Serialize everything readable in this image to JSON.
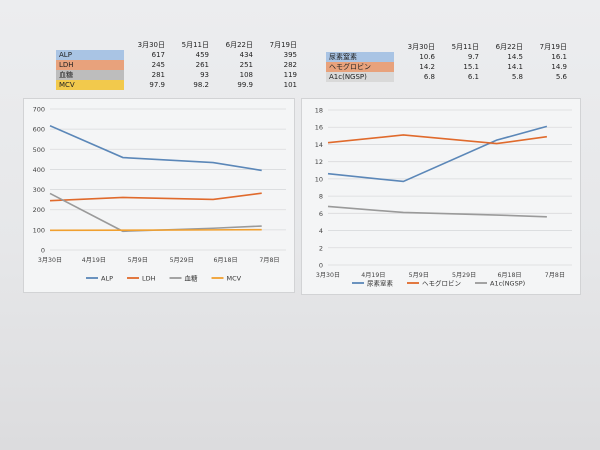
{
  "table_left": {
    "dates": [
      "3月30日",
      "5月11日",
      "6月22日",
      "7月19日"
    ],
    "rows": [
      {
        "label": "ALP",
        "values": [
          "617",
          "459",
          "434",
          "395"
        ],
        "color": "#a9c4e4"
      },
      {
        "label": "LDH",
        "values": [
          "245",
          "261",
          "251",
          "282"
        ],
        "color": "#e8a27c"
      },
      {
        "label": "血糖",
        "values": [
          "281",
          "93",
          "108",
          "119"
        ],
        "color": "#bdbdbd"
      },
      {
        "label": "MCV",
        "values": [
          "97.9",
          "98.2",
          "99.9",
          "101"
        ],
        "color": "#f2c94c"
      }
    ]
  },
  "table_right": {
    "dates": [
      "3月30日",
      "5月11日",
      "6月22日",
      "7月19日"
    ],
    "rows": [
      {
        "label": "尿素窒素",
        "values": [
          "10.6",
          "9.7",
          "14.5",
          "16.1"
        ],
        "color": "#a9c4e4"
      },
      {
        "label": "ヘモグロビン",
        "values": [
          "14.2",
          "15.1",
          "14.1",
          "14.9"
        ],
        "color": "#e8a27c"
      },
      {
        "label": "A1c(NGSP)",
        "values": [
          "6.8",
          "6.1",
          "5.8",
          "5.6"
        ],
        "color": "#d9d9d9"
      }
    ]
  },
  "chart_data": [
    {
      "type": "line",
      "x_ticks": [
        "3月30日",
        "4月19日",
        "5月9日",
        "5月29日",
        "6月18日",
        "7月8日"
      ],
      "x_points": [
        0,
        1.05,
        2.35,
        3.05
      ],
      "y_ticks": [
        "0",
        "100",
        "200",
        "300",
        "400",
        "500",
        "600",
        "700"
      ],
      "ylim": [
        0,
        700
      ],
      "xlim": [
        0,
        3.4
      ],
      "grid": true,
      "legend_position": "bottom",
      "series": [
        {
          "name": "ALP",
          "values": [
            617,
            459,
            434,
            395
          ],
          "color": "#5b87b8"
        },
        {
          "name": "LDH",
          "values": [
            245,
            261,
            251,
            282
          ],
          "color": "#e06a2c"
        },
        {
          "name": "血糖",
          "values": [
            281,
            93,
            108,
            119
          ],
          "color": "#9a9a9a"
        },
        {
          "name": "MCV",
          "values": [
            97.9,
            98.2,
            99.9,
            101
          ],
          "color": "#f0a030"
        }
      ]
    },
    {
      "type": "line",
      "x_ticks": [
        "3月30日",
        "4月19日",
        "5月9日",
        "5月29日",
        "6月18日",
        "7月8日"
      ],
      "x_points": [
        0,
        1.05,
        2.35,
        3.05
      ],
      "y_ticks": [
        "0",
        "2",
        "4",
        "6",
        "8",
        "10",
        "12",
        "14",
        "16",
        "18"
      ],
      "ylim": [
        0,
        18
      ],
      "xlim": [
        0,
        3.4
      ],
      "grid": true,
      "legend_position": "bottom",
      "series": [
        {
          "name": "尿素窒素",
          "values": [
            10.6,
            9.7,
            14.5,
            16.1
          ],
          "color": "#5b87b8"
        },
        {
          "name": "ヘモグロビン",
          "values": [
            14.2,
            15.1,
            14.1,
            14.9
          ],
          "color": "#e06a2c"
        },
        {
          "name": "A1c(NGSP)",
          "values": [
            6.8,
            6.1,
            5.8,
            5.6
          ],
          "color": "#9a9a9a"
        }
      ]
    }
  ]
}
